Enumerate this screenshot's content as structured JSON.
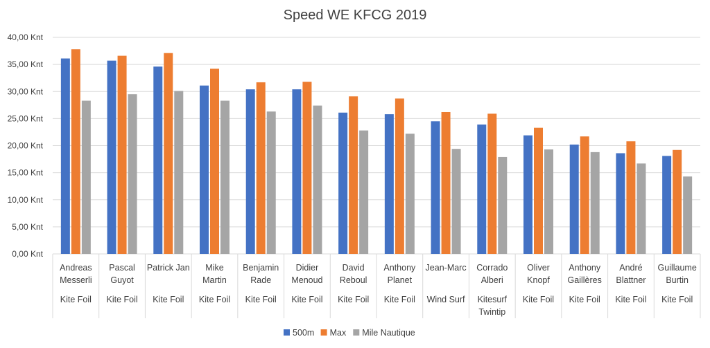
{
  "chart_data": {
    "type": "bar",
    "title": "Speed WE KFCG 2019",
    "ylim": [
      0,
      40
    ],
    "yticks": [
      "0,00 Knt",
      "5,00 Knt",
      "10,00 Knt",
      "15,00 Knt",
      "20,00 Knt",
      "25,00 Knt",
      "30,00 Knt",
      "35,00 Knt",
      "40,00 Knt"
    ],
    "grid": true,
    "legend_position": "bottom",
    "categories": [
      {
        "name": [
          "Andreas",
          "Messerli"
        ],
        "group": [
          "Kite Foil"
        ]
      },
      {
        "name": [
          "Pascal",
          "Guyot"
        ],
        "group": [
          "Kite Foil"
        ]
      },
      {
        "name": [
          "Patrick Jan"
        ],
        "group": [
          "Kite Foil"
        ]
      },
      {
        "name": [
          "Mike",
          "Martin"
        ],
        "group": [
          "Kite Foil"
        ]
      },
      {
        "name": [
          "Benjamin",
          "Rade"
        ],
        "group": [
          "Kite Foil"
        ]
      },
      {
        "name": [
          "Didier",
          "Menoud"
        ],
        "group": [
          "Kite Foil"
        ]
      },
      {
        "name": [
          "David",
          "Reboul"
        ],
        "group": [
          "Kite Foil"
        ]
      },
      {
        "name": [
          "Anthony",
          "Planet"
        ],
        "group": [
          "Kite Foil"
        ]
      },
      {
        "name": [
          "Jean-Marc"
        ],
        "group": [
          "Wind Surf"
        ]
      },
      {
        "name": [
          "Corrado",
          "Alberi"
        ],
        "group": [
          "Kitesurf",
          "Twintip"
        ]
      },
      {
        "name": [
          "Oliver",
          "Knopf"
        ],
        "group": [
          "Kite Foil"
        ]
      },
      {
        "name": [
          "Anthony",
          "Gaillères"
        ],
        "group": [
          "Kite Foil"
        ]
      },
      {
        "name": [
          "André",
          "Blattner"
        ],
        "group": [
          "Kite Foil"
        ]
      },
      {
        "name": [
          "Guillaume",
          "Burtin"
        ],
        "group": [
          "Kite Foil"
        ]
      }
    ],
    "series": [
      {
        "name": "500m",
        "color": "#4472c4",
        "values": [
          36.1,
          35.7,
          34.6,
          31.1,
          30.4,
          30.4,
          26.1,
          25.8,
          24.5,
          23.9,
          21.9,
          20.2,
          18.6,
          18.1
        ]
      },
      {
        "name": "Max",
        "color": "#ed7d31",
        "values": [
          37.8,
          36.6,
          37.1,
          34.2,
          31.7,
          31.8,
          29.1,
          28.7,
          26.2,
          25.9,
          23.3,
          21.7,
          20.8,
          19.2
        ]
      },
      {
        "name": "Mile Nautique",
        "color": "#a5a5a5",
        "values": [
          28.3,
          29.5,
          30.1,
          28.3,
          26.3,
          27.4,
          22.8,
          22.2,
          19.4,
          17.9,
          19.3,
          18.8,
          16.7,
          14.3
        ]
      }
    ]
  }
}
